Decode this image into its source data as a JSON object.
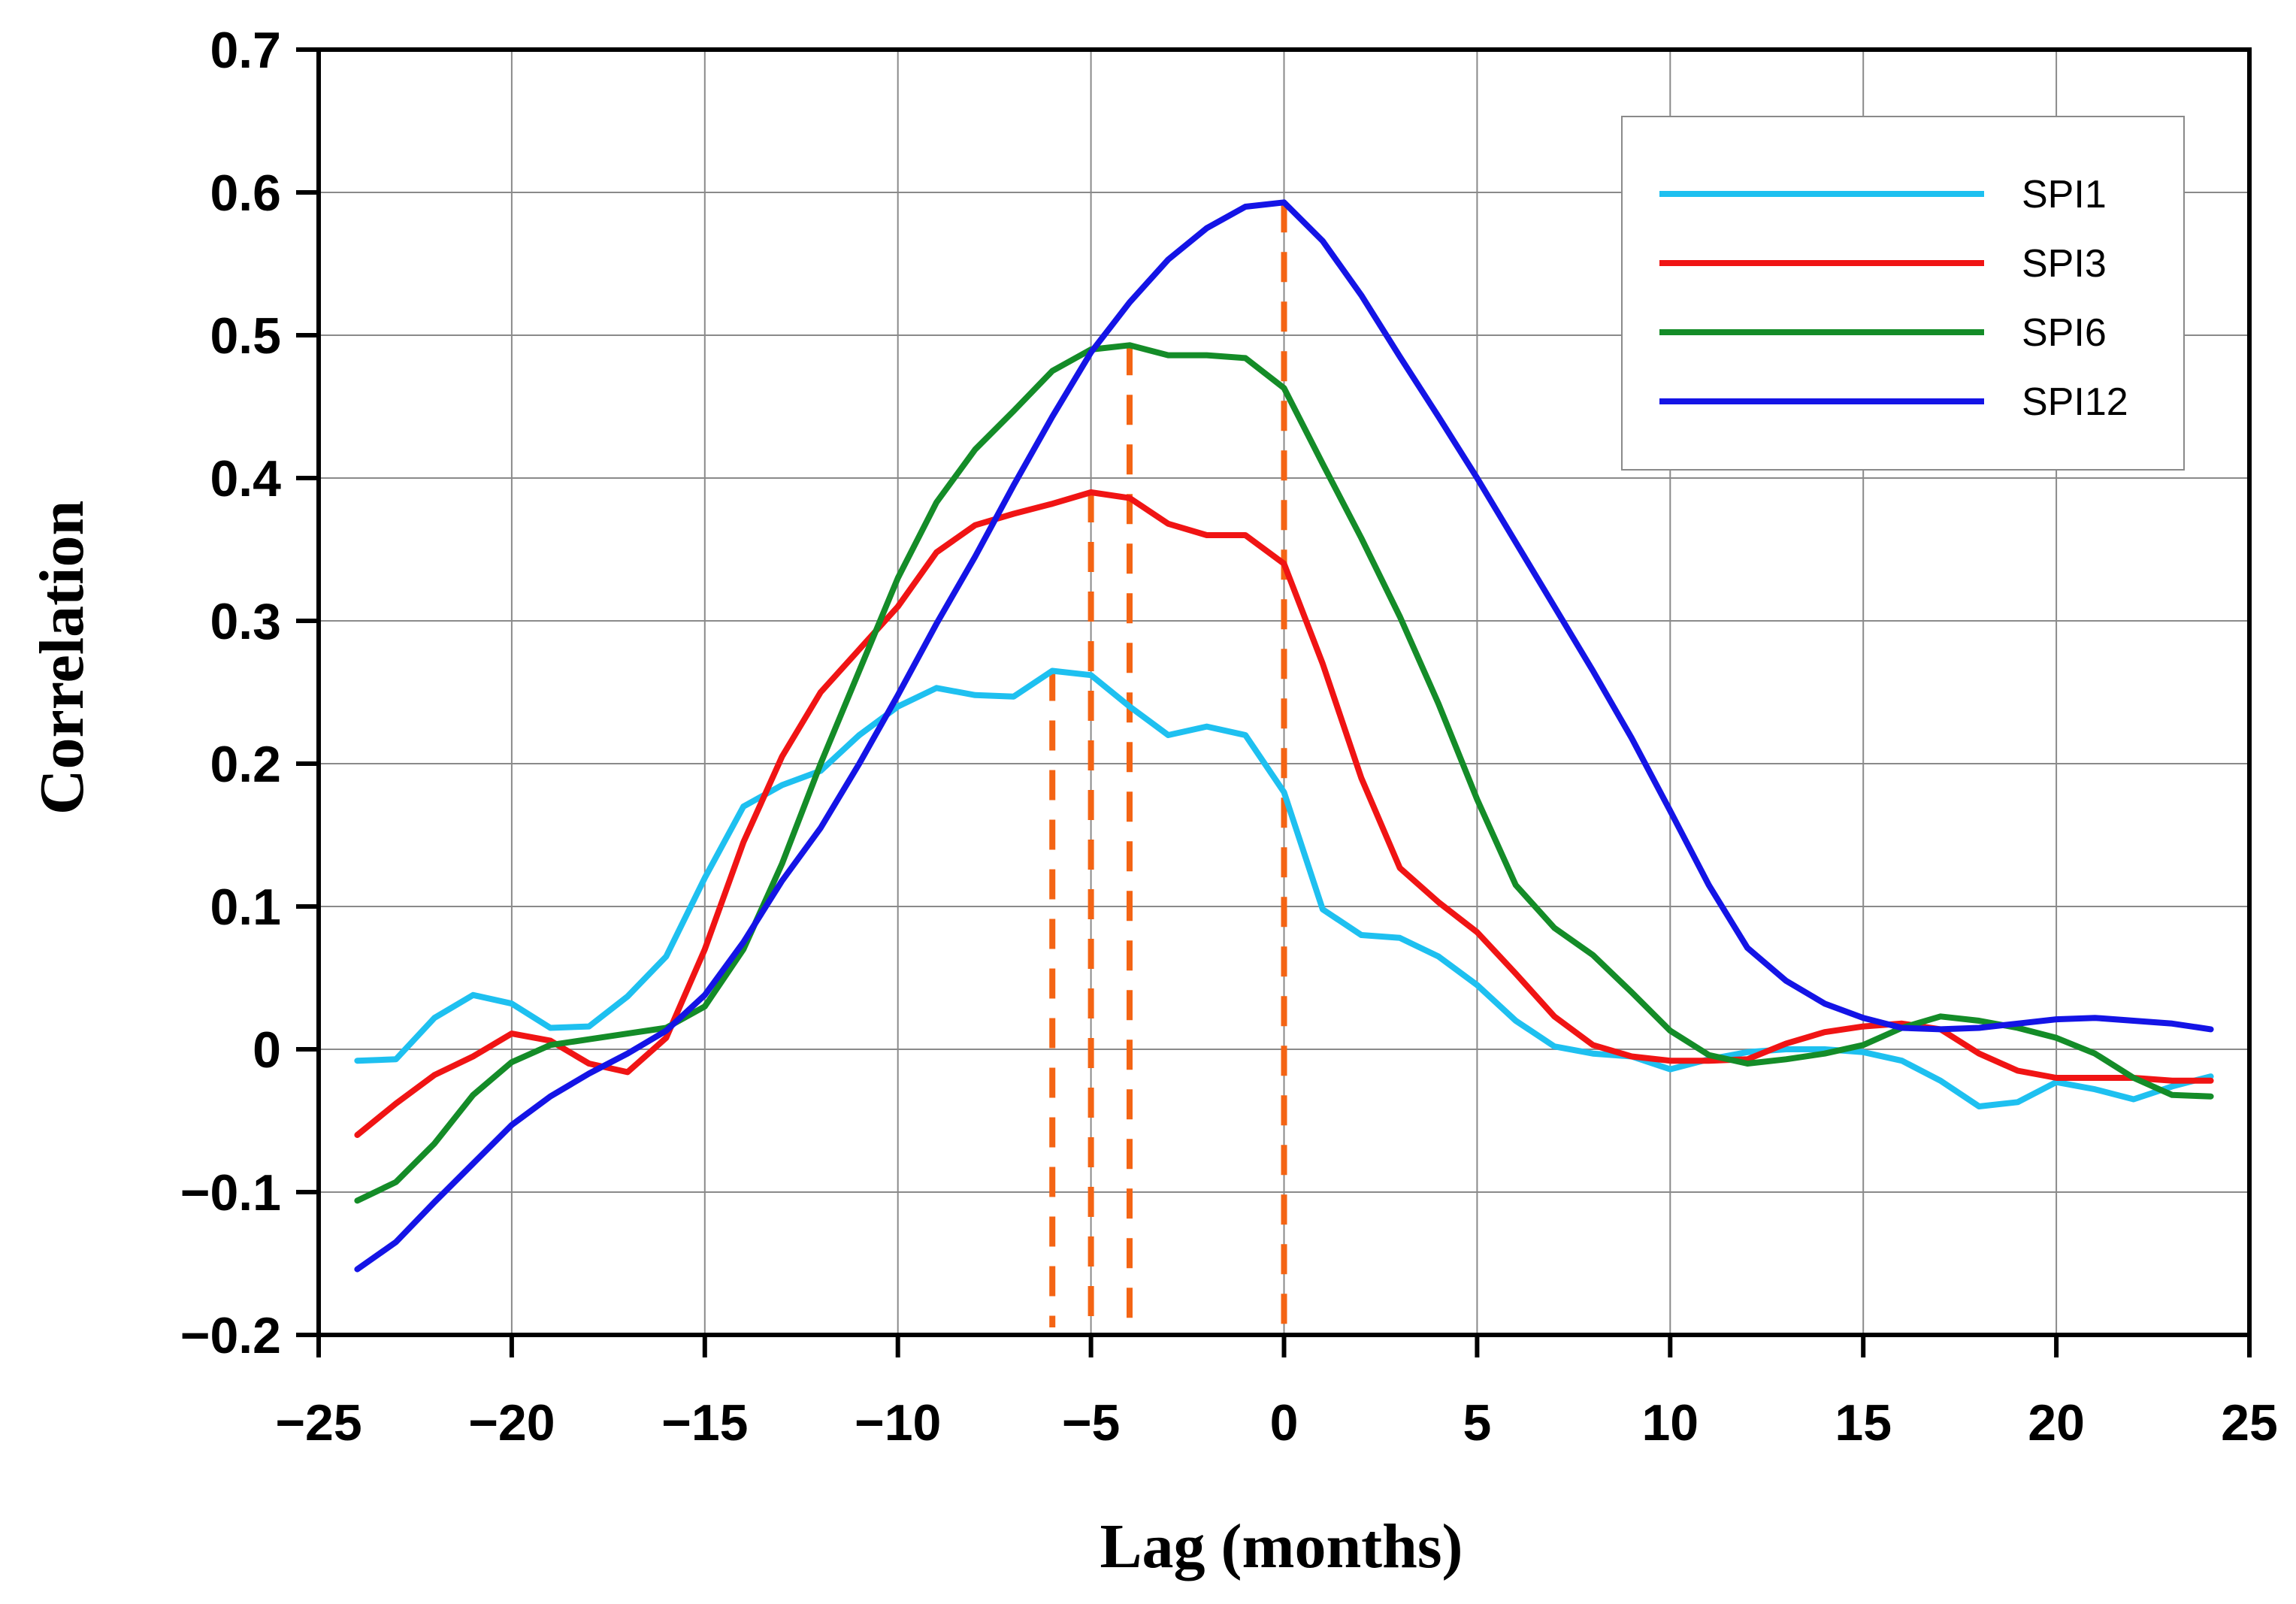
{
  "chart_data": {
    "type": "line",
    "title": "",
    "xlabel": "Lag (months)",
    "ylabel": "Correlation",
    "xlim": [
      -25,
      25
    ],
    "ylim": [
      -0.2,
      0.7
    ],
    "x_ticks": [
      -25,
      -20,
      -15,
      -10,
      -5,
      0,
      5,
      10,
      15,
      20,
      25
    ],
    "x_tick_labels": [
      "−25",
      "−20",
      "−15",
      "−10",
      "−5",
      "0",
      "5",
      "10",
      "15",
      "20",
      "25"
    ],
    "y_ticks": [
      -0.2,
      -0.1,
      0,
      0.1,
      0.2,
      0.3,
      0.4,
      0.5,
      0.6,
      0.7
    ],
    "y_tick_labels": [
      "−0.2",
      "−0.1",
      "0",
      "0.1",
      "0.2",
      "0.3",
      "0.4",
      "0.5",
      "0.6",
      "0.7"
    ],
    "grid": true,
    "legend_position": "top-right",
    "x": [
      -24,
      -23,
      -22,
      -21,
      -20,
      -19,
      -18,
      -17,
      -16,
      -15,
      -14,
      -13,
      -12,
      -11,
      -10,
      -9,
      -8,
      -7,
      -6,
      -5,
      -4,
      -3,
      -2,
      -1,
      0,
      1,
      2,
      3,
      4,
      5,
      6,
      7,
      8,
      9,
      10,
      11,
      12,
      13,
      14,
      15,
      16,
      17,
      18,
      19,
      20,
      21,
      22,
      23,
      24
    ],
    "series": [
      {
        "name": "SPI1",
        "color": "#1ec0f0",
        "values": [
          -0.008,
          -0.007,
          0.022,
          0.038,
          0.032,
          0.015,
          0.016,
          0.037,
          0.065,
          0.12,
          0.17,
          0.185,
          0.195,
          0.22,
          0.24,
          0.253,
          0.248,
          0.247,
          0.265,
          0.262,
          0.24,
          0.22,
          0.226,
          0.22,
          0.18,
          0.098,
          0.08,
          0.078,
          0.065,
          0.045,
          0.02,
          0.002,
          -0.003,
          -0.005,
          -0.014,
          -0.007,
          -0.002,
          0.0,
          0.0,
          -0.002,
          -0.008,
          -0.022,
          -0.04,
          -0.037,
          -0.023,
          -0.028,
          -0.035,
          -0.026,
          -0.019
        ]
      },
      {
        "name": "SPI3",
        "color": "#f01414",
        "values": [
          -0.06,
          -0.038,
          -0.018,
          -0.005,
          0.011,
          0.006,
          -0.01,
          -0.016,
          0.008,
          0.07,
          0.145,
          0.205,
          0.25,
          0.28,
          0.31,
          0.348,
          0.367,
          0.375,
          0.382,
          0.39,
          0.386,
          0.368,
          0.36,
          0.36,
          0.34,
          0.27,
          0.19,
          0.127,
          0.103,
          0.082,
          0.053,
          0.023,
          0.003,
          -0.005,
          -0.008,
          -0.008,
          -0.007,
          0.004,
          0.012,
          0.016,
          0.018,
          0.014,
          -0.003,
          -0.015,
          -0.02,
          -0.02,
          -0.02,
          -0.022,
          -0.022
        ]
      },
      {
        "name": "SPI6",
        "color": "#148c28",
        "values": [
          -0.106,
          -0.093,
          -0.066,
          -0.032,
          -0.009,
          0.003,
          0.007,
          0.011,
          0.015,
          0.03,
          0.07,
          0.13,
          0.2,
          0.265,
          0.33,
          0.383,
          0.42,
          0.447,
          0.475,
          0.49,
          0.493,
          0.486,
          0.486,
          0.484,
          0.463,
          0.41,
          0.358,
          0.303,
          0.242,
          0.175,
          0.115,
          0.085,
          0.066,
          0.04,
          0.013,
          -0.004,
          -0.01,
          -0.007,
          -0.003,
          0.003,
          0.015,
          0.023,
          0.02,
          0.015,
          0.008,
          -0.003,
          -0.02,
          -0.032,
          -0.033
        ]
      },
      {
        "name": "SPI12",
        "color": "#1414e6",
        "values": [
          -0.154,
          -0.135,
          -0.107,
          -0.08,
          -0.053,
          -0.033,
          -0.017,
          -0.003,
          0.013,
          0.038,
          0.075,
          0.118,
          0.155,
          0.2,
          0.248,
          0.298,
          0.345,
          0.395,
          0.443,
          0.488,
          0.523,
          0.553,
          0.575,
          0.59,
          0.593,
          0.566,
          0.528,
          0.485,
          0.443,
          0.4,
          0.355,
          0.31,
          0.265,
          0.218,
          0.167,
          0.115,
          0.071,
          0.048,
          0.032,
          0.022,
          0.015,
          0.014,
          0.015,
          0.018,
          0.021,
          0.022,
          0.02,
          0.018,
          0.014
        ]
      }
    ],
    "reference_lines": {
      "color": "#f46414",
      "style": "dashed",
      "markers": [
        {
          "x": -6,
          "y_top": 0.265
        },
        {
          "x": -5,
          "y_top": 0.39
        },
        {
          "x": -4,
          "y_top": 0.493
        },
        {
          "x": 0,
          "y_top": 0.593
        }
      ]
    }
  }
}
